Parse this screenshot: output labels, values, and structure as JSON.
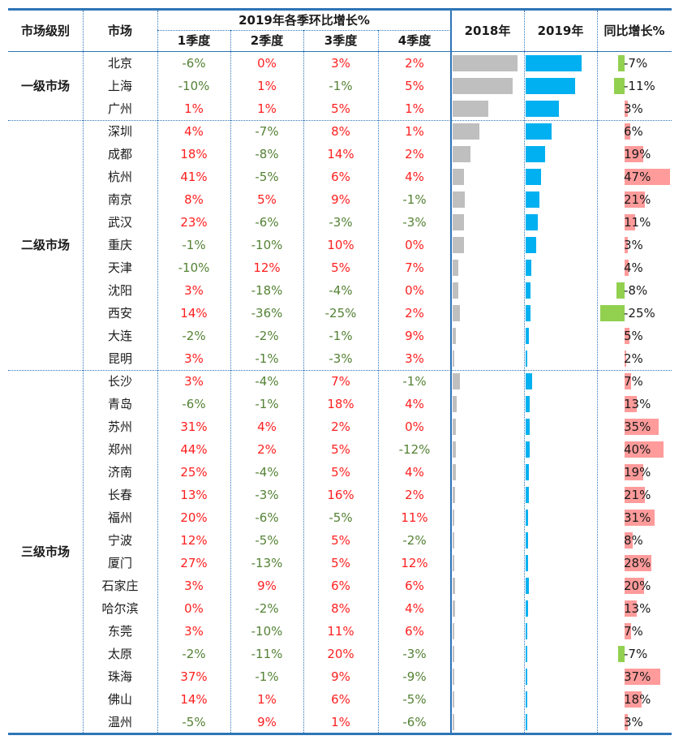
{
  "headers": {
    "tier": "市场级别",
    "city": "市场",
    "qoq_group": "2019年各季环比增长%",
    "q1": "1季度",
    "q2": "2季度",
    "q3": "3季度",
    "q4": "4季度",
    "y2018": "2018年",
    "y2019": "2019年",
    "yoy": "同比增长%"
  },
  "tiers": [
    {
      "label": "一级市场",
      "start": 0,
      "end": 2
    },
    {
      "label": "二级市场",
      "start": 3,
      "end": 13
    },
    {
      "label": "三级市场",
      "start": 14,
      "end": 29
    }
  ],
  "colors": {
    "positive": "#ff2020",
    "negative": "#548235",
    "bar2018": "#bfbfbf",
    "bar2019": "#00b0f0",
    "yoy_positive": "#ff9b9b",
    "yoy_negative": "#92d050",
    "border": "#2e75b6"
  },
  "chart_data": {
    "type": "table",
    "columns": [
      "市场",
      "1季度",
      "2季度",
      "3季度",
      "4季度",
      "2018年",
      "2019年",
      "同比增长%"
    ],
    "rows": [
      {
        "city": "北京",
        "q": [
          "-6%",
          "0%",
          "3%",
          "2%"
        ],
        "v2018": 100,
        "v2019": 93,
        "yoy": "-7%",
        "yoy_val": -7
      },
      {
        "city": "上海",
        "q": [
          "-10%",
          "1%",
          "-1%",
          "5%"
        ],
        "v2018": 93,
        "v2019": 83,
        "yoy": "-11%",
        "yoy_val": -11
      },
      {
        "city": "广州",
        "q": [
          "1%",
          "1%",
          "5%",
          "1%"
        ],
        "v2018": 55,
        "v2019": 56,
        "yoy": "3%",
        "yoy_val": 3
      },
      {
        "city": "深圳",
        "q": [
          "4%",
          "-7%",
          "8%",
          "1%"
        ],
        "v2018": 41,
        "v2019": 43,
        "yoy": "6%",
        "yoy_val": 6
      },
      {
        "city": "成都",
        "q": [
          "18%",
          "-8%",
          "14%",
          "2%"
        ],
        "v2018": 28,
        "v2019": 33,
        "yoy": "19%",
        "yoy_val": 19
      },
      {
        "city": "杭州",
        "q": [
          "41%",
          "-5%",
          "6%",
          "4%"
        ],
        "v2018": 17,
        "v2019": 25,
        "yoy": "47%",
        "yoy_val": 47
      },
      {
        "city": "南京",
        "q": [
          "8%",
          "5%",
          "9%",
          "-1%"
        ],
        "v2018": 19,
        "v2019": 23,
        "yoy": "21%",
        "yoy_val": 21
      },
      {
        "city": "武汉",
        "q": [
          "23%",
          "-6%",
          "-3%",
          "-3%"
        ],
        "v2018": 18,
        "v2019": 20,
        "yoy": "11%",
        "yoy_val": 11
      },
      {
        "city": "重庆",
        "q": [
          "-1%",
          "-10%",
          "10%",
          "0%"
        ],
        "v2018": 17,
        "v2019": 18,
        "yoy": "3%",
        "yoy_val": 3
      },
      {
        "city": "天津",
        "q": [
          "-10%",
          "12%",
          "5%",
          "7%"
        ],
        "v2018": 9,
        "v2019": 9,
        "yoy": "4%",
        "yoy_val": 4
      },
      {
        "city": "沈阳",
        "q": [
          "3%",
          "-18%",
          "-4%",
          "0%"
        ],
        "v2018": 9,
        "v2019": 8,
        "yoy": "-8%",
        "yoy_val": -8
      },
      {
        "city": "西安",
        "q": [
          "14%",
          "-36%",
          "-25%",
          "2%"
        ],
        "v2018": 11,
        "v2019": 8,
        "yoy": "-25%",
        "yoy_val": -25
      },
      {
        "city": "大连",
        "q": [
          "-2%",
          "-2%",
          "-1%",
          "9%"
        ],
        "v2018": 5,
        "v2019": 5,
        "yoy": "5%",
        "yoy_val": 5
      },
      {
        "city": "昆明",
        "q": [
          "3%",
          "-1%",
          "-3%",
          "3%"
        ],
        "v2018": 3,
        "v2019": 3,
        "yoy": "2%",
        "yoy_val": 2
      },
      {
        "city": "长沙",
        "q": [
          "3%",
          "-4%",
          "7%",
          "-1%"
        ],
        "v2018": 11,
        "v2019": 11,
        "yoy": "7%",
        "yoy_val": 7
      },
      {
        "city": "青岛",
        "q": [
          "-6%",
          "-1%",
          "18%",
          "4%"
        ],
        "v2018": 6,
        "v2019": 7,
        "yoy": "13%",
        "yoy_val": 13
      },
      {
        "city": "苏州",
        "q": [
          "31%",
          "4%",
          "2%",
          "0%"
        ],
        "v2018": 5,
        "v2019": 7,
        "yoy": "35%",
        "yoy_val": 35
      },
      {
        "city": "郑州",
        "q": [
          "44%",
          "2%",
          "5%",
          "-12%"
        ],
        "v2018": 5,
        "v2019": 7,
        "yoy": "40%",
        "yoy_val": 40
      },
      {
        "city": "济南",
        "q": [
          "25%",
          "-4%",
          "5%",
          "4%"
        ],
        "v2018": 5,
        "v2019": 6,
        "yoy": "19%",
        "yoy_val": 19
      },
      {
        "city": "长春",
        "q": [
          "13%",
          "-3%",
          "16%",
          "2%"
        ],
        "v2018": 4,
        "v2019": 5,
        "yoy": "21%",
        "yoy_val": 21
      },
      {
        "city": "福州",
        "q": [
          "20%",
          "-6%",
          "-5%",
          "11%"
        ],
        "v2018": 3,
        "v2019": 4,
        "yoy": "31%",
        "yoy_val": 31
      },
      {
        "city": "宁波",
        "q": [
          "12%",
          "-5%",
          "5%",
          "-2%"
        ],
        "v2018": 3,
        "v2019": 4,
        "yoy": "8%",
        "yoy_val": 8
      },
      {
        "city": "厦门",
        "q": [
          "27%",
          "-13%",
          "5%",
          "12%"
        ],
        "v2018": 3,
        "v2019": 4,
        "yoy": "28%",
        "yoy_val": 28
      },
      {
        "city": "石家庄",
        "q": [
          "3%",
          "9%",
          "6%",
          "6%"
        ],
        "v2018": 4,
        "v2019": 5,
        "yoy": "20%",
        "yoy_val": 20
      },
      {
        "city": "哈尔滨",
        "q": [
          "0%",
          "-2%",
          "8%",
          "4%"
        ],
        "v2018": 4,
        "v2019": 4,
        "yoy": "13%",
        "yoy_val": 13
      },
      {
        "city": "东莞",
        "q": [
          "3%",
          "-10%",
          "11%",
          "6%"
        ],
        "v2018": 2,
        "v2019": 3,
        "yoy": "7%",
        "yoy_val": 7
      },
      {
        "city": "太原",
        "q": [
          "-2%",
          "-11%",
          "20%",
          "-3%"
        ],
        "v2018": 2,
        "v2019": 2,
        "yoy": "-7%",
        "yoy_val": -7
      },
      {
        "city": "珠海",
        "q": [
          "37%",
          "-1%",
          "9%",
          "-9%"
        ],
        "v2018": 2,
        "v2019": 3,
        "yoy": "37%",
        "yoy_val": 37
      },
      {
        "city": "佛山",
        "q": [
          "14%",
          "1%",
          "6%",
          "-5%"
        ],
        "v2018": 2,
        "v2019": 2,
        "yoy": "18%",
        "yoy_val": 18
      },
      {
        "city": "温州",
        "q": [
          "-5%",
          "9%",
          "1%",
          "-6%"
        ],
        "v2018": 2,
        "v2019": 2,
        "yoy": "3%",
        "yoy_val": 3
      }
    ]
  }
}
